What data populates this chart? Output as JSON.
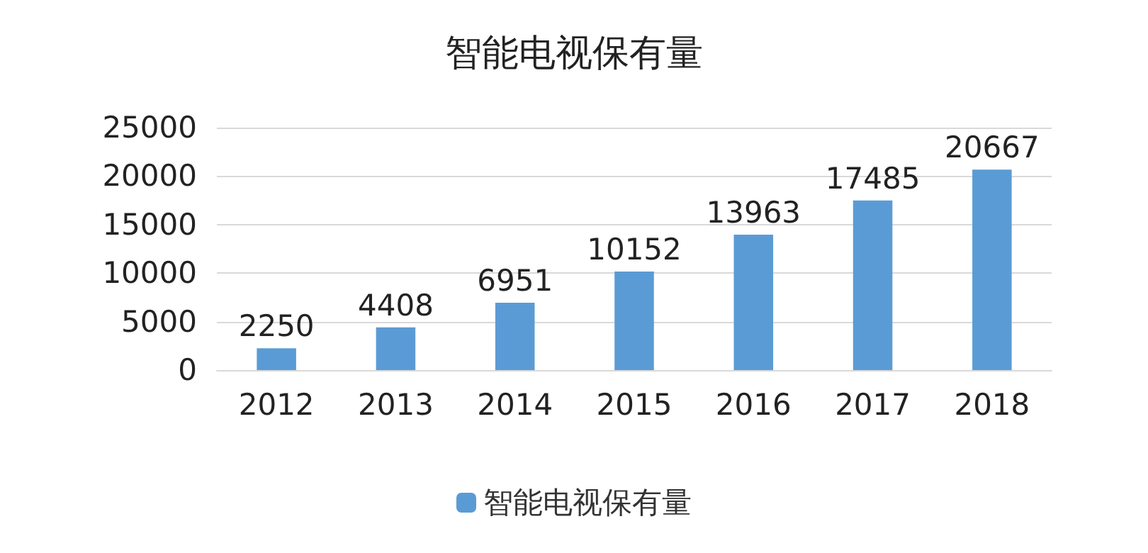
{
  "chart_data": {
    "type": "bar",
    "title": "智能电视保有量",
    "categories": [
      "2012",
      "2013",
      "2014",
      "2015",
      "2016",
      "2017",
      "2018"
    ],
    "series": [
      {
        "name": "智能电视保有量",
        "color": "#5b9bd5",
        "values": [
          2250,
          4408,
          6951,
          10152,
          13963,
          17485,
          20667
        ]
      }
    ],
    "ylim": [
      0,
      25000
    ],
    "yticks": [
      0,
      5000,
      10000,
      15000,
      20000,
      25000
    ],
    "grid": "y",
    "legend": "bottom",
    "data_labels": true
  }
}
